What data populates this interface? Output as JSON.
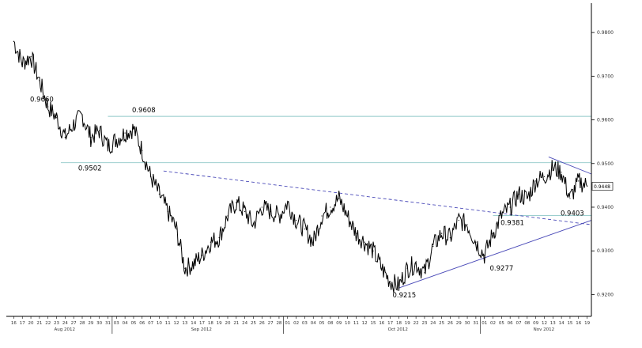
{
  "chart_data": {
    "type": "line",
    "ylim": [
      0.915,
      0.986
    ],
    "y_ticks": [
      {
        "label": "0.9800",
        "value": 0.98
      },
      {
        "label": "0.9700",
        "value": 0.97
      },
      {
        "label": "0.9600",
        "value": 0.96
      },
      {
        "label": "0.9500",
        "value": 0.95
      },
      {
        "label": "0.9400",
        "value": 0.94
      },
      {
        "label": "0.9300",
        "value": 0.93
      },
      {
        "label": "0.9200",
        "value": 0.92
      }
    ],
    "x_ticks": [
      "16",
      "17",
      "20",
      "21",
      "22",
      "23",
      "24",
      "27",
      "28",
      "29",
      "30",
      "31",
      "03",
      "04",
      "05",
      "06",
      "07",
      "10",
      "11",
      "12",
      "13",
      "14",
      "17",
      "18",
      "19",
      "20",
      "21",
      "24",
      "25",
      "26",
      "27",
      "28",
      "01",
      "02",
      "03",
      "04",
      "05",
      "08",
      "09",
      "10",
      "11",
      "12",
      "15",
      "16",
      "17",
      "18",
      "19",
      "22",
      "23",
      "24",
      "25",
      "26",
      "29",
      "30",
      "31",
      "01",
      "02",
      "05",
      "06",
      "07",
      "08",
      "09",
      "12",
      "13",
      "14",
      "15",
      "16",
      "19"
    ],
    "month_labels": [
      {
        "label": "Aug 2012",
        "index": 5
      },
      {
        "label": "Sep 2012",
        "index": 21
      },
      {
        "label": "Oct 2012",
        "index": 44
      },
      {
        "label": "Nov 2012",
        "index": 61
      }
    ],
    "month_separators": [
      12,
      32,
      55
    ],
    "annotations": [
      {
        "label": "0.9660",
        "index": 2,
        "value": 0.966
      },
      {
        "label": "0.9608",
        "index": 14,
        "value": 0.9608
      },
      {
        "label": "0.9502",
        "index": 9,
        "value": 0.9502
      },
      {
        "label": "0.9215",
        "index": 45,
        "value": 0.9215
      },
      {
        "label": "0.9277",
        "index": 56,
        "value": 0.9277
      },
      {
        "label": "0.9381",
        "index": 58,
        "value": 0.9381
      },
      {
        "label": "0.9403",
        "index": 65,
        "value": 0.9403
      }
    ],
    "last_value_label": "0.9448",
    "daily_close": [
      0.978,
      0.973,
      0.9745,
      0.969,
      0.963,
      0.9605,
      0.956,
      0.959,
      0.961,
      0.956,
      0.9575,
      0.954,
      0.9555,
      0.957,
      0.958,
      0.953,
      0.947,
      0.943,
      0.939,
      0.935,
      0.926,
      0.927,
      0.929,
      0.932,
      0.933,
      0.938,
      0.941,
      0.939,
      0.936,
      0.94,
      0.939,
      0.938,
      0.941,
      0.937,
      0.935,
      0.932,
      0.938,
      0.94,
      0.942,
      0.938,
      0.934,
      0.932,
      0.93,
      0.926,
      0.923,
      0.922,
      0.926,
      0.927,
      0.925,
      0.931,
      0.934,
      0.933,
      0.937,
      0.936,
      0.932,
      0.929,
      0.934,
      0.938,
      0.94,
      0.943,
      0.942,
      0.946,
      0.947,
      0.949,
      0.948,
      0.942,
      0.946,
      0.9448
    ],
    "horizontal_levels": [
      0.9608,
      0.9502,
      0.9381
    ],
    "trend_lines": [
      {
        "style": "dashed",
        "from": {
          "index": 17.5,
          "value": 0.9483
        },
        "to": {
          "index": 67.5,
          "value": 0.936
        }
      },
      {
        "style": "solid",
        "from": {
          "index": 45,
          "value": 0.9215
        },
        "to": {
          "index": 67.5,
          "value": 0.937
        }
      },
      {
        "style": "solid",
        "from": {
          "index": 62.5,
          "value": 0.9515
        },
        "to": {
          "index": 67.5,
          "value": 0.9476
        }
      }
    ],
    "colors": {
      "price": "#000000",
      "level_line": "#8fc8c8",
      "trend_line": "#4a4ab8",
      "axis": "#000000",
      "grid": "#bbbbbb"
    },
    "grid": false
  }
}
